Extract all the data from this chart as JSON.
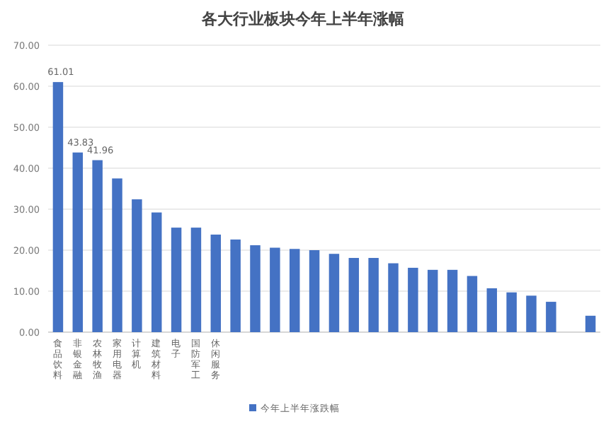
{
  "chart_data": {
    "type": "bar",
    "title": "各大行业板块今年上半年涨幅",
    "categories": [
      "食品饮料",
      "非银金融",
      "农林牧渔",
      "家用电器",
      "计算机",
      "建筑材料",
      "电子",
      "国防军工",
      "休闲服务",
      null,
      null,
      null,
      null,
      null,
      null,
      null,
      null,
      null,
      null,
      null,
      null,
      null,
      null,
      null,
      null,
      null,
      null,
      null
    ],
    "series": [
      {
        "name": "今年上半年涨跌幅",
        "color": "#4472c4",
        "values": [
          61.01,
          43.83,
          41.96,
          37.5,
          32.4,
          29.2,
          25.5,
          25.5,
          23.8,
          22.6,
          21.2,
          20.6,
          20.3,
          20.0,
          19.1,
          18.1,
          18.1,
          16.8,
          15.7,
          15.2,
          15.2,
          13.7,
          10.7,
          9.7,
          8.9,
          7.4,
          null,
          4.0
        ],
        "value_labels": [
          "61.01",
          "43.83",
          "41.96",
          null,
          null,
          null,
          null,
          null,
          null,
          null,
          null,
          null,
          null,
          null,
          null,
          null,
          null,
          null,
          null,
          null,
          null,
          null,
          null,
          null,
          null,
          null,
          null,
          null
        ]
      }
    ],
    "ylim": [
      0,
      70
    ],
    "yticks": [
      {
        "value": 0,
        "label": "0.00"
      },
      {
        "value": 10,
        "label": "10.00"
      },
      {
        "value": 20,
        "label": "20.00"
      },
      {
        "value": 30,
        "label": "30.00"
      },
      {
        "value": 40,
        "label": "40.00"
      },
      {
        "value": 50,
        "label": "50.00"
      },
      {
        "value": 60,
        "label": "60.00"
      },
      {
        "value": 70,
        "label": "70.00"
      }
    ],
    "grid": "y",
    "legend": "bottom"
  }
}
